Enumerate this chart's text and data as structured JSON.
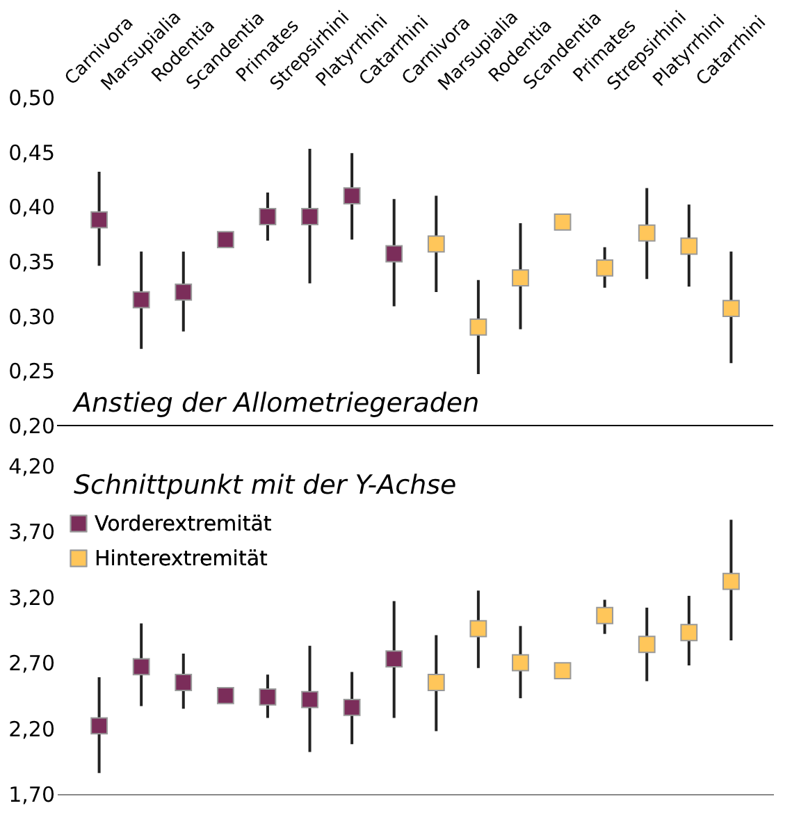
{
  "chart_data": [
    {
      "type": "scatter",
      "title": "Anstieg der Allometriegeraden",
      "categories": [
        "Carnivora",
        "Marsupialia",
        "Rodentia",
        "Scandentia",
        "Primates",
        "Strepsirhini",
        "Platyrrhini",
        "Catarrhini",
        "Carnivora",
        "Marsupialia",
        "Rodentia",
        "Scandentia",
        "Primates",
        "Strepsirhini",
        "Platyrrhini",
        "Catarrhini"
      ],
      "series": [
        {
          "color": "#7b2d5a",
          "values": [
            0.388,
            0.315,
            0.322,
            0.37,
            0.391,
            0.391,
            0.41,
            0.357,
            null,
            null,
            null,
            null,
            null,
            null,
            null,
            null
          ],
          "errors": [
            [
              0.346,
              0.432
            ],
            [
              0.27,
              0.359
            ],
            [
              0.286,
              0.359
            ],
            null,
            [
              0.369,
              0.413
            ],
            [
              0.33,
              0.453
            ],
            [
              0.37,
              0.449
            ],
            [
              0.309,
              0.407
            ],
            null,
            null,
            null,
            null,
            null,
            null,
            null,
            null
          ]
        },
        {
          "color": "#ffc65a",
          "values": [
            null,
            null,
            null,
            null,
            null,
            null,
            null,
            null,
            0.366,
            0.29,
            0.335,
            0.386,
            0.344,
            0.376,
            0.364,
            0.307
          ],
          "errors": [
            null,
            null,
            null,
            null,
            null,
            null,
            null,
            null,
            [
              0.322,
              0.41
            ],
            [
              0.247,
              0.333
            ],
            [
              0.288,
              0.385
            ],
            null,
            [
              0.326,
              0.363
            ],
            [
              0.334,
              0.417
            ],
            [
              0.327,
              0.402
            ],
            [
              0.257,
              0.359
            ]
          ]
        }
      ],
      "ylim": [
        0.2,
        0.5
      ],
      "yticks": [
        {
          "value": 0.2,
          "label": "0,20"
        },
        {
          "value": 0.25,
          "label": "0,25"
        },
        {
          "value": 0.3,
          "label": "0,30"
        },
        {
          "value": 0.35,
          "label": "0,35"
        },
        {
          "value": 0.4,
          "label": "0,40"
        },
        {
          "value": 0.45,
          "label": "0,45"
        },
        {
          "value": 0.5,
          "label": "0,50"
        }
      ],
      "marker": "square",
      "grid": false,
      "legend": false
    },
    {
      "type": "scatter",
      "title": "Schnittpunkt mit der Y-Achse",
      "categories": [
        null,
        null,
        null,
        null,
        null,
        null,
        null,
        null,
        null,
        null,
        null,
        null,
        null,
        null,
        null,
        null
      ],
      "series": [
        {
          "name": "Vorderextremität",
          "color": "#7b2d5a",
          "values": [
            2.22,
            2.67,
            2.55,
            2.45,
            2.44,
            2.42,
            2.36,
            2.73,
            null,
            null,
            null,
            null,
            null,
            null,
            null,
            null
          ],
          "errors": [
            [
              1.86,
              2.59
            ],
            [
              2.37,
              3.0
            ],
            [
              2.35,
              2.77
            ],
            null,
            [
              2.28,
              2.61
            ],
            [
              2.02,
              2.83
            ],
            [
              2.08,
              2.63
            ],
            [
              2.28,
              3.17
            ],
            null,
            null,
            null,
            null,
            null,
            null,
            null,
            null
          ]
        },
        {
          "name": "Hinterextremität",
          "color": "#ffc65a",
          "values": [
            null,
            null,
            null,
            null,
            null,
            null,
            null,
            null,
            2.55,
            2.96,
            2.7,
            2.64,
            3.06,
            2.84,
            2.93,
            3.32
          ],
          "errors": [
            null,
            null,
            null,
            null,
            null,
            null,
            null,
            null,
            [
              2.18,
              2.91
            ],
            [
              2.66,
              3.25
            ],
            [
              2.43,
              2.98
            ],
            null,
            [
              2.92,
              3.18
            ],
            [
              2.56,
              3.12
            ],
            [
              2.68,
              3.21
            ],
            [
              2.87,
              3.79
            ]
          ]
        }
      ],
      "ylim": [
        1.7,
        4.2
      ],
      "yticks": [
        {
          "value": 1.7,
          "label": "1,70"
        },
        {
          "value": 2.2,
          "label": "2,20"
        },
        {
          "value": 2.7,
          "label": "2,70"
        },
        {
          "value": 3.2,
          "label": "3,20"
        },
        {
          "value": 3.7,
          "label": "3,70"
        },
        {
          "value": 4.2,
          "label": "4,20"
        }
      ],
      "marker": "square",
      "grid": false,
      "legend": "top left",
      "tick_labels": "y"
    }
  ]
}
